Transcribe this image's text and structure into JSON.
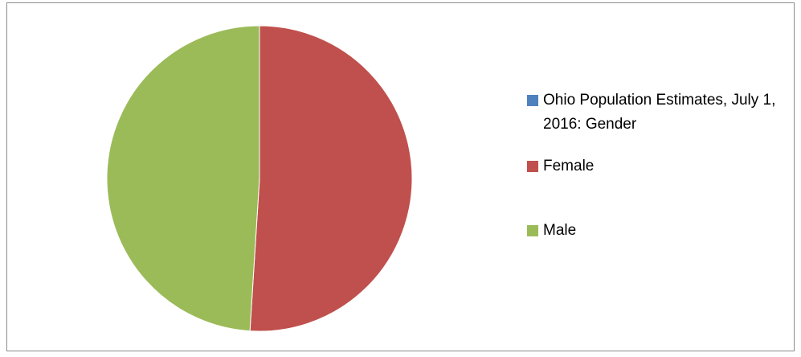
{
  "chart_data": {
    "type": "pie",
    "categories": [
      "Ohio Population Estimates, July 1, 2016: Gender",
      "Female",
      "Male"
    ],
    "values": [
      0,
      51,
      49
    ],
    "colors": [
      "#4f81bd",
      "#c0504d",
      "#9bbb59"
    ],
    "legend": "right"
  }
}
